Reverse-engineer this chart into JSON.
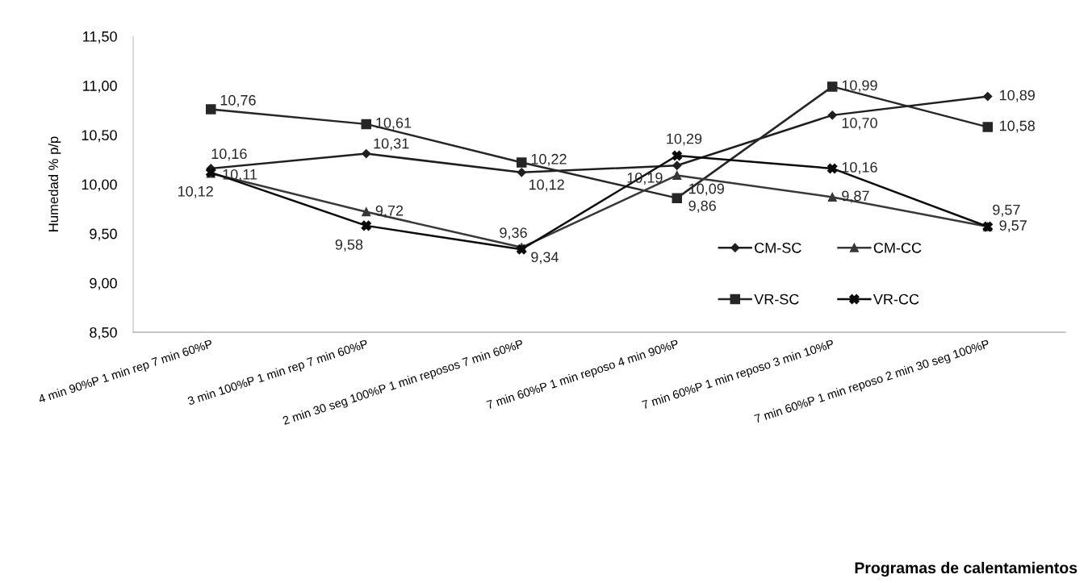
{
  "chart_data": {
    "type": "line",
    "annotations": [
      "Programas de calentamientos"
    ],
    "ylabel": "Humedad % p/p",
    "categories": [
      "4 min 90%P 1 min rep 7 min 60%P",
      "3 min 100%P 1 min rep 7 min 60%P",
      "2 min 30 seg 100%P 1 min reposos 7 min 60%P",
      "7 min 60%P 1 min reposo 4 min 90%P",
      "7 min 60%P 1 min reposo 3 min 10%P",
      "7 min 60%P 1 min reposo 2 min 30 seg 100%P"
    ],
    "series": [
      {
        "name": "CM-SC",
        "color": "#1f1f1f",
        "marker": "diamond",
        "values": [
          10.16,
          10.31,
          10.12,
          10.19,
          10.7,
          10.89
        ],
        "value_labels": [
          "10,16",
          "10,31",
          "10,12",
          "10,19",
          "10,70",
          "10,89"
        ]
      },
      {
        "name": "VR-SC",
        "color": "#262626",
        "marker": "square",
        "values": [
          10.76,
          10.61,
          10.22,
          9.86,
          10.99,
          10.58
        ],
        "value_labels": [
          "10,76",
          "10,61",
          "10,22",
          "9,86",
          "10,99",
          "10,58"
        ]
      },
      {
        "name": "CM-CC",
        "color": "#383838",
        "marker": "triangle",
        "values": [
          10.11,
          9.72,
          9.36,
          10.09,
          9.87,
          9.57
        ],
        "value_labels": [
          "10,11",
          "9,72",
          "9,36",
          "10,09",
          "9,87",
          "9,57"
        ]
      },
      {
        "name": "VR-CC",
        "color": "#0a0a0a",
        "marker": "cross",
        "values": [
          10.12,
          9.58,
          9.34,
          10.29,
          10.16,
          9.57
        ],
        "value_labels": [
          "10,12",
          "9,58",
          "9,34",
          "10,29",
          "10,16",
          "9,57"
        ]
      }
    ],
    "ylim": [
      8.5,
      11.5
    ],
    "yticks": [
      {
        "value": 8.5,
        "label": "8,50"
      },
      {
        "value": 9.0,
        "label": "9,00"
      },
      {
        "value": 9.5,
        "label": "9,50"
      },
      {
        "value": 10.0,
        "label": "10,00"
      },
      {
        "value": 10.5,
        "label": "10,50"
      },
      {
        "value": 11.0,
        "label": "11,00"
      },
      {
        "value": 11.5,
        "label": "11,50"
      }
    ],
    "grid": false,
    "legend": "bottom right",
    "line_style": "solid"
  }
}
